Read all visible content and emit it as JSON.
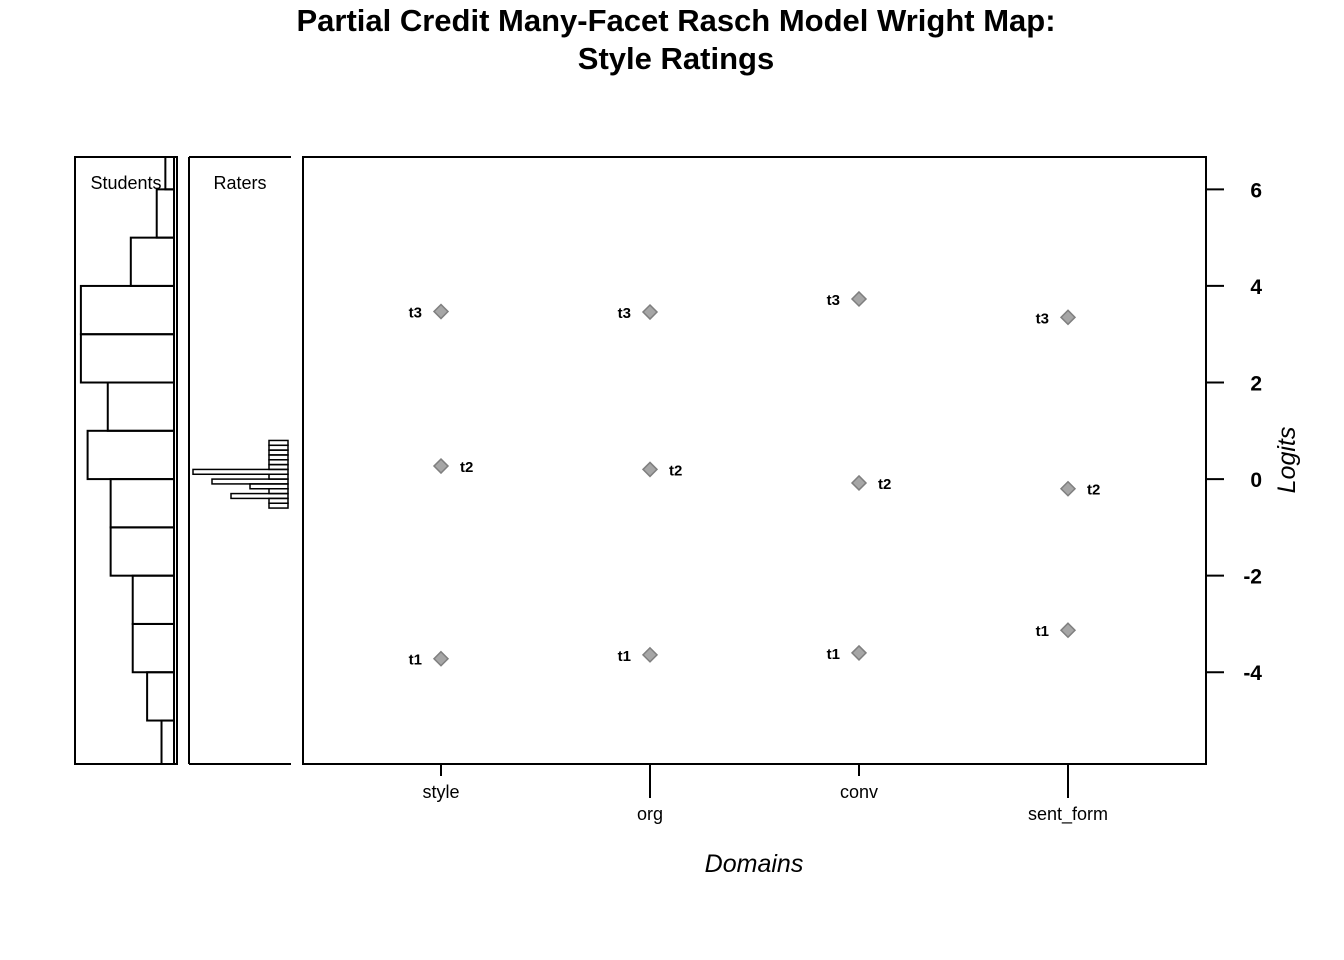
{
  "title_line1": "Partial Credit Many-Facet Rasch Model Wright Map:",
  "title_line2": "Style Ratings",
  "chart_data": {
    "type": "scatter",
    "title": "Partial Credit Many-Facet Rasch Model Wright Map: Style Ratings",
    "xlabel": "Domains",
    "ylabel": "Logits",
    "ylim": [
      -5.9,
      6.67
    ],
    "y_ticks": [
      6,
      4,
      2,
      0,
      -2,
      -4
    ],
    "categories": [
      "style",
      "org",
      "conv",
      "sent_form"
    ],
    "marker_color": "#a6a6a6",
    "marker_stroke": "#7f7f7f",
    "thresholds": [
      {
        "name": "t1",
        "values": [
          -3.72,
          -3.64,
          -3.6,
          -3.13
        ]
      },
      {
        "name": "t2",
        "values": [
          0.27,
          0.2,
          -0.08,
          -0.2
        ]
      },
      {
        "name": "t3",
        "values": [
          3.47,
          3.46,
          3.73,
          3.35
        ]
      }
    ],
    "students_panel": {
      "label": "Students",
      "bins": [
        {
          "lo": 6,
          "hi": 7,
          "count": 0.09
        },
        {
          "lo": 5,
          "hi": 6,
          "count": 0.18
        },
        {
          "lo": 4,
          "hi": 5,
          "count": 0.45
        },
        {
          "lo": 3,
          "hi": 4,
          "count": 0.97
        },
        {
          "lo": 2,
          "hi": 3,
          "count": 0.97
        },
        {
          "lo": 1,
          "hi": 2,
          "count": 0.69
        },
        {
          "lo": 0,
          "hi": 1,
          "count": 0.9
        },
        {
          "lo": -1,
          "hi": 0,
          "count": 0.66
        },
        {
          "lo": -2,
          "hi": -1,
          "count": 0.66
        },
        {
          "lo": -3,
          "hi": -2,
          "count": 0.43
        },
        {
          "lo": -4,
          "hi": -3,
          "count": 0.43
        },
        {
          "lo": -5,
          "hi": -4,
          "count": 0.28
        },
        {
          "lo": -6,
          "hi": -5,
          "count": 0.13
        }
      ]
    },
    "raters_panel": {
      "label": "Raters",
      "bins": [
        {
          "lo": 0.7,
          "hi": 0.8,
          "count": 0.2
        },
        {
          "lo": 0.6,
          "hi": 0.7,
          "count": 0.2
        },
        {
          "lo": 0.5,
          "hi": 0.6,
          "count": 0.2
        },
        {
          "lo": 0.4,
          "hi": 0.5,
          "count": 0.2
        },
        {
          "lo": 0.3,
          "hi": 0.4,
          "count": 0.2
        },
        {
          "lo": 0.2,
          "hi": 0.3,
          "count": 0.2
        },
        {
          "lo": 0.1,
          "hi": 0.2,
          "count": 1.0
        },
        {
          "lo": 0.0,
          "hi": 0.1,
          "count": 0.2
        },
        {
          "lo": -0.1,
          "hi": 0.0,
          "count": 0.8
        },
        {
          "lo": -0.2,
          "hi": -0.1,
          "count": 0.4
        },
        {
          "lo": -0.3,
          "hi": -0.2,
          "count": 0.2
        },
        {
          "lo": -0.4,
          "hi": -0.3,
          "count": 0.6
        },
        {
          "lo": -0.5,
          "hi": -0.4,
          "count": 0.2
        },
        {
          "lo": -0.6,
          "hi": -0.5,
          "count": 0.2
        }
      ]
    }
  }
}
